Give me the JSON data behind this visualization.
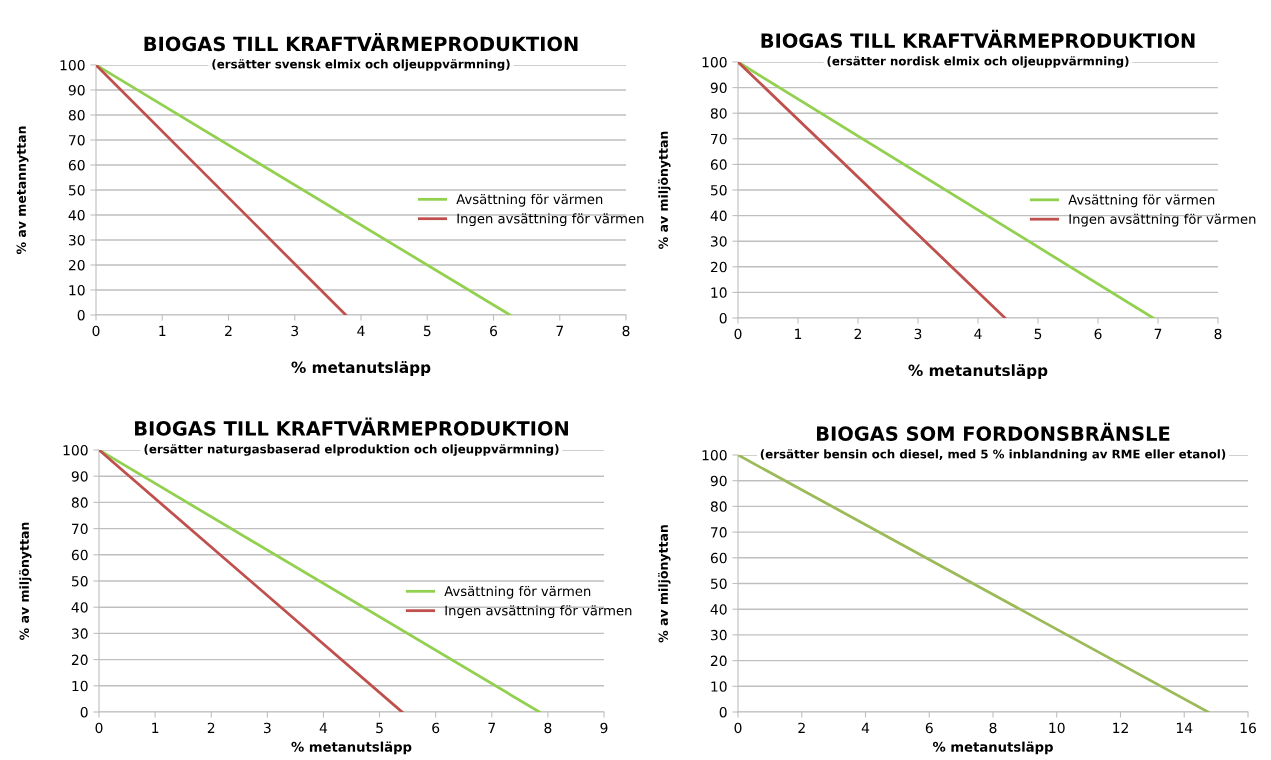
{
  "chart_data": [
    {
      "type": "line",
      "title": "BIOGAS TILL KRAFTVÄRMEPRODUKTION",
      "subtitle": "(ersätter svensk elmix och oljeuppvärmning)",
      "xlabel": "% metanutsläpp",
      "ylabel": "% av metannyttan",
      "xlim": [
        0,
        8
      ],
      "xticks": [
        0,
        1,
        2,
        3,
        4,
        5,
        6,
        7,
        8
      ],
      "ylim": [
        0,
        100
      ],
      "yticks": [
        0,
        10,
        20,
        30,
        40,
        50,
        60,
        70,
        80,
        90,
        100
      ],
      "grid": "y",
      "legend": "right",
      "marker": "none",
      "line_style": "solid",
      "series": [
        {
          "name": "Avsättning för värmen",
          "color": "#92d050",
          "x": [
            0,
            6.25
          ],
          "values": [
            100,
            0
          ]
        },
        {
          "name": "Ingen avsättning för värmen",
          "color": "#c0504d",
          "x": [
            0,
            3.77
          ],
          "values": [
            100,
            0
          ]
        }
      ]
    },
    {
      "type": "line",
      "title": "BIOGAS TILL KRAFTVÄRMEPRODUKTION",
      "subtitle": "(ersätter nordisk elmix och oljeuppvärmning)",
      "xlabel": "% metanutsläpp",
      "ylabel": "% av miljönyttan",
      "xlim": [
        0,
        8
      ],
      "xticks": [
        0,
        1,
        2,
        3,
        4,
        5,
        6,
        7,
        8
      ],
      "ylim": [
        0,
        100
      ],
      "yticks": [
        0,
        10,
        20,
        30,
        40,
        50,
        60,
        70,
        80,
        90,
        100
      ],
      "grid": "y",
      "legend": "right",
      "marker": "none",
      "line_style": "solid",
      "series": [
        {
          "name": "Avsättning för värmen",
          "color": "#92d050",
          "x": [
            0,
            6.92
          ],
          "values": [
            100,
            0
          ]
        },
        {
          "name": "Ingen avsättning för värmen",
          "color": "#c0504d",
          "x": [
            0,
            4.45
          ],
          "values": [
            100,
            0
          ]
        }
      ]
    },
    {
      "type": "line",
      "title": "BIOGAS TILL KRAFTVÄRMEPRODUKTION",
      "subtitle": "(ersätter naturgasbaserad elproduktion och oljeuppvärmning)",
      "xlabel": "% metanutsläpp",
      "ylabel": "% av miljönyttan",
      "xlim": [
        0,
        9
      ],
      "xticks": [
        0,
        1,
        2,
        3,
        4,
        5,
        6,
        7,
        8,
        9
      ],
      "ylim": [
        0,
        100
      ],
      "yticks": [
        0,
        10,
        20,
        30,
        40,
        50,
        60,
        70,
        80,
        90,
        100
      ],
      "grid": "y",
      "legend": "right",
      "marker": "none",
      "line_style": "solid",
      "series": [
        {
          "name": "Avsättning för värmen",
          "color": "#92d050",
          "x": [
            0,
            7.85
          ],
          "values": [
            100,
            0
          ]
        },
        {
          "name": "Ingen avsättning för värmen",
          "color": "#c0504d",
          "x": [
            0,
            5.4
          ],
          "values": [
            100,
            0
          ]
        }
      ]
    },
    {
      "type": "line",
      "title": "BIOGAS SOM FORDONSBRÄNSLE",
      "subtitle": "(ersätter bensin och diesel, med 5 % inblandning av RME eller etanol)",
      "xlabel": "% metanutsläpp",
      "ylabel": "% av miljönyttan",
      "xlim": [
        0,
        16
      ],
      "xticks": [
        0,
        2,
        4,
        6,
        8,
        10,
        12,
        14,
        16
      ],
      "ylim": [
        0,
        100
      ],
      "yticks": [
        0,
        10,
        20,
        30,
        40,
        50,
        60,
        70,
        80,
        90,
        100
      ],
      "grid": "y",
      "marker": "none",
      "line_style": "solid",
      "series": [
        {
          "color": "#9bbb59",
          "x": [
            0,
            14.75
          ],
          "values": [
            100,
            0
          ]
        }
      ]
    }
  ]
}
